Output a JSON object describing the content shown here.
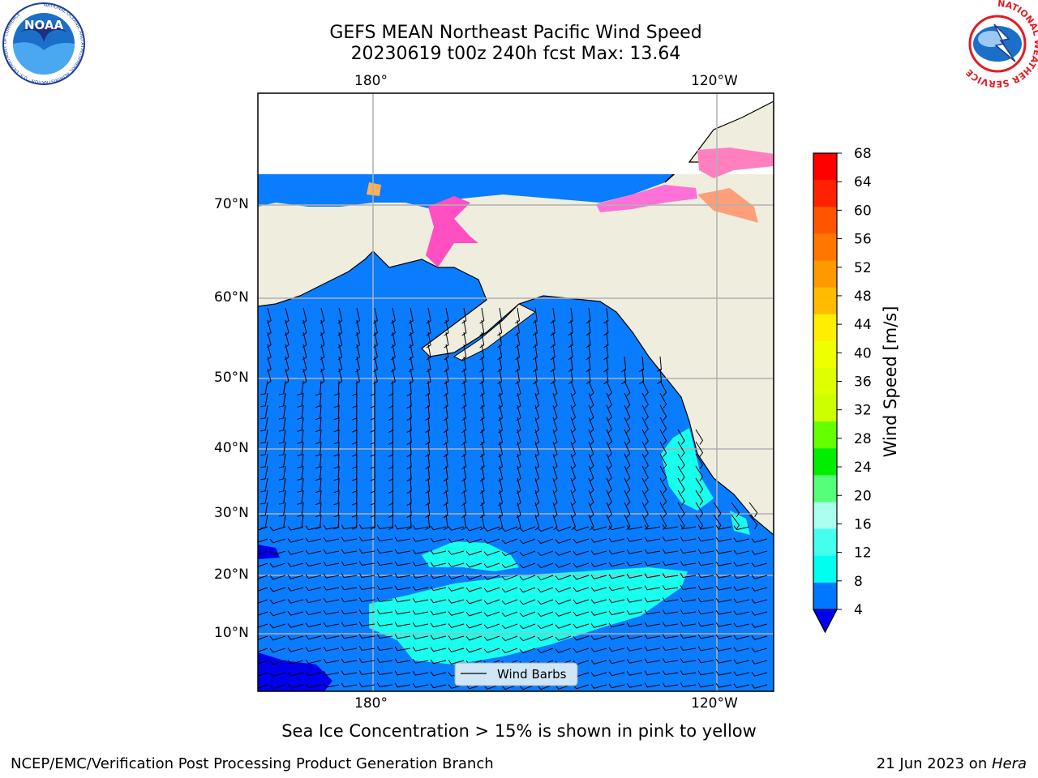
{
  "title": {
    "line1": "GEFS MEAN Northeast Pacific Wind Speed",
    "line2": "20230619 t00z 240h fcst   Max: 13.64"
  },
  "map": {
    "lon_labels_top": [
      "180°",
      "120°W"
    ],
    "lon_labels_bottom": [
      "180°",
      "120°W"
    ],
    "lat_labels": [
      "70°N",
      "60°N",
      "50°N",
      "40°N",
      "30°N",
      "20°N",
      "10°N"
    ],
    "legend_label": "Wind Barbs",
    "ocean_color": "#0a7cff",
    "land_color": "#efedde",
    "highwind_color": "#19ffee"
  },
  "colorbar": {
    "label": "Wind Speed [m/s]",
    "ticks": [
      "68",
      "64",
      "60",
      "56",
      "52",
      "48",
      "44",
      "40",
      "36",
      "32",
      "28",
      "24",
      "20",
      "16",
      "12",
      "8",
      "4"
    ],
    "colors": [
      "#ff0000",
      "#ff2200",
      "#ff5500",
      "#ff7700",
      "#ff9900",
      "#ffbb00",
      "#ffee00",
      "#eeff00",
      "#ddff00",
      "#ccff00",
      "#66ff00",
      "#00ee00",
      "#55ff77",
      "#aaffee",
      "#44ffee",
      "#00ffee",
      "#0077ff"
    ],
    "extend_color": "#0000ee"
  },
  "note": "Sea Ice Concentration > 15% is shown in pink to yellow",
  "footer": {
    "left": "NCEP/EMC/Verification Post Processing Product Generation Branch",
    "right_date": "21 Jun 2023 on ",
    "right_machine": "Hera"
  },
  "logos": {
    "noaa_text": "NOAA",
    "noaa_ring": "NATIONAL OCEANIC AND ATMOSPHERIC ADMINISTRATION · U.S. DEPARTMENT OF COMMERCE",
    "nws_ring": "NATIONAL WEATHER SERVICE"
  }
}
